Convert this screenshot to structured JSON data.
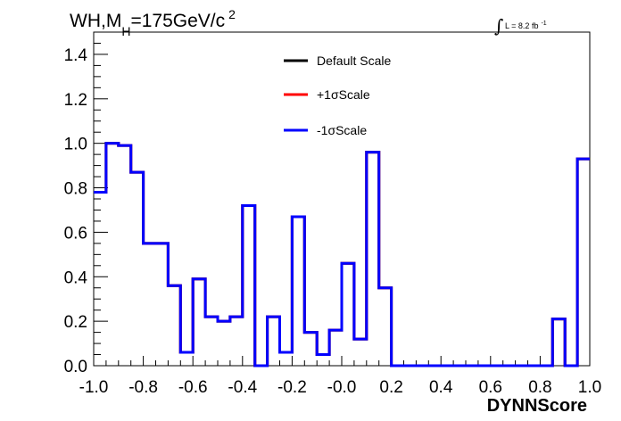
{
  "chart_data": {
    "type": "line",
    "title": {
      "prefix": "WH,M",
      "subscript": "H",
      "main": "=175GeV/c",
      "superscript": "2"
    },
    "luminosity": {
      "integral_symbol": "∫",
      "text": "L = 8.2 fb",
      "superscript": "-1"
    },
    "xlabel": "DYNNScore",
    "ylabel": "",
    "xlim": [
      -1.0,
      1.0
    ],
    "ylim": [
      0.0,
      1.5
    ],
    "xticks": [
      "-1.0",
      "-0.8",
      "-0.6",
      "-0.4",
      "-0.2",
      "-0.0",
      "0.2",
      "0.4",
      "0.6",
      "0.8",
      "1.0"
    ],
    "yticks": [
      "0.0",
      "0.2",
      "0.4",
      "0.6",
      "0.8",
      "1.0",
      "1.2",
      "1.4"
    ],
    "grid": false,
    "legend_position": "top-center",
    "bin_edges": [
      -1.0,
      -0.95,
      -0.9,
      -0.85,
      -0.8,
      -0.75,
      -0.7,
      -0.65,
      -0.6,
      -0.55,
      -0.5,
      -0.45,
      -0.4,
      -0.35,
      -0.3,
      -0.25,
      -0.2,
      -0.15,
      -0.1,
      -0.05,
      0.0,
      0.05,
      0.1,
      0.15,
      0.2,
      0.25,
      0.3,
      0.35,
      0.4,
      0.45,
      0.5,
      0.55,
      0.6,
      0.65,
      0.7,
      0.75,
      0.8,
      0.85,
      0.9,
      0.95,
      1.0
    ],
    "series": [
      {
        "name": "Default Scale",
        "color": "#000000",
        "values": [
          0.78,
          1.0,
          0.99,
          0.87,
          0.55,
          0.55,
          0.36,
          0.06,
          0.39,
          0.22,
          0.2,
          0.22,
          0.72,
          0.0,
          0.22,
          0.06,
          0.67,
          0.15,
          0.05,
          0.16,
          0.46,
          0.12,
          0.96,
          0.35,
          0.0,
          0.0,
          0.0,
          0.0,
          0.0,
          0.0,
          0.0,
          0.0,
          0.0,
          0.0,
          0.0,
          0.0,
          0.0,
          0.21,
          0.0,
          0.93
        ]
      },
      {
        "name": "+1σScale",
        "color": "#ff0000",
        "values": [
          0.78,
          1.0,
          0.99,
          0.87,
          0.55,
          0.55,
          0.36,
          0.06,
          0.39,
          0.22,
          0.2,
          0.22,
          0.72,
          0.0,
          0.22,
          0.06,
          0.67,
          0.15,
          0.05,
          0.16,
          0.46,
          0.12,
          0.96,
          0.35,
          0.0,
          0.0,
          0.0,
          0.0,
          0.0,
          0.0,
          0.0,
          0.0,
          0.0,
          0.0,
          0.0,
          0.0,
          0.0,
          0.21,
          0.0,
          0.93
        ]
      },
      {
        "name": "-1σScale",
        "color": "#0000ff",
        "values": [
          0.78,
          1.0,
          0.99,
          0.87,
          0.55,
          0.55,
          0.36,
          0.06,
          0.39,
          0.22,
          0.2,
          0.22,
          0.72,
          0.0,
          0.22,
          0.06,
          0.67,
          0.15,
          0.05,
          0.16,
          0.46,
          0.12,
          0.96,
          0.35,
          0.0,
          0.0,
          0.0,
          0.0,
          0.0,
          0.0,
          0.0,
          0.0,
          0.0,
          0.0,
          0.0,
          0.0,
          0.0,
          0.21,
          0.0,
          0.93
        ]
      }
    ]
  }
}
